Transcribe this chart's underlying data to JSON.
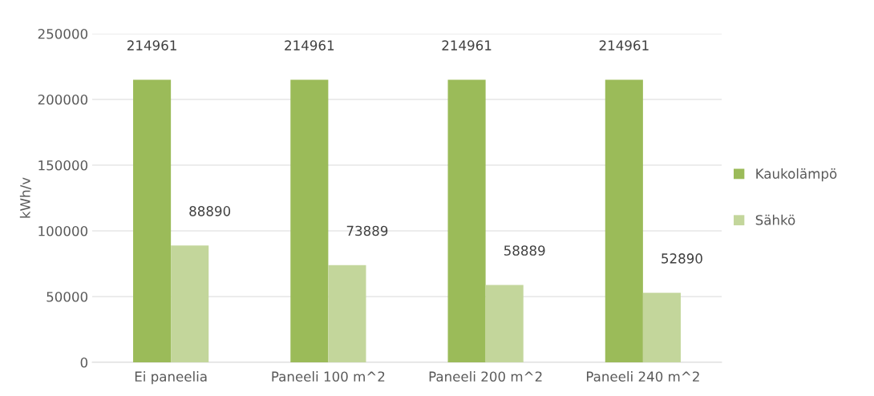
{
  "chart_data": {
    "type": "bar",
    "ylabel": "kWh/v",
    "categories": [
      "Ei paneelia",
      "Paneeli 100 m^2",
      "Paneeli 200 m^2",
      "Paneeli 240 m^2"
    ],
    "series": [
      {
        "name": "Kaukolämpö",
        "color": "#9bbb59",
        "values": [
          214961,
          214961,
          214961,
          214961
        ]
      },
      {
        "name": "Sähkö",
        "color": "#c3d69b",
        "values": [
          88890,
          73889,
          58889,
          52890
        ]
      }
    ],
    "ylim": [
      0,
      250000
    ],
    "yticks": [
      0,
      50000,
      100000,
      150000,
      200000,
      250000
    ],
    "grid": "y",
    "legend": "right",
    "data_labels": true
  }
}
